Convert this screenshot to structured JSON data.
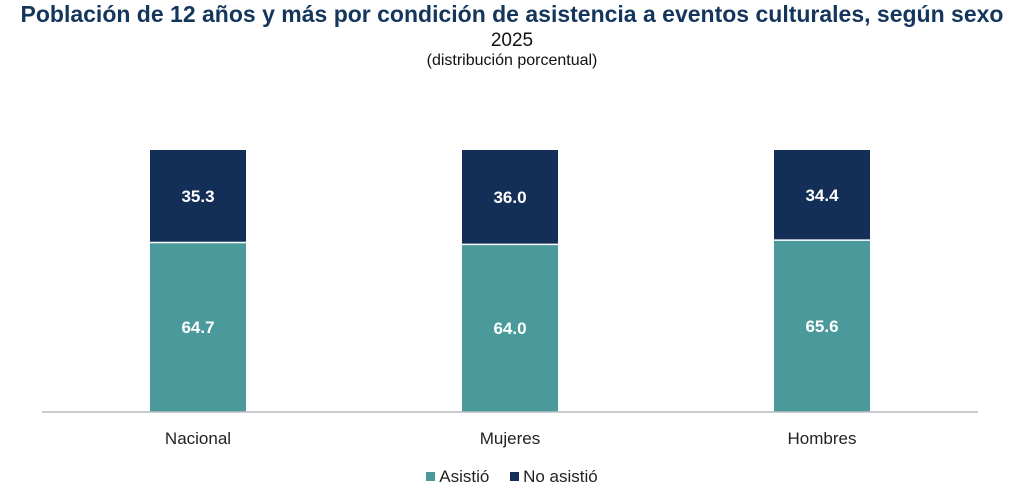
{
  "chart_data": {
    "type": "stacked-bar",
    "title": "Población de 12 años y más por condición de asistencia a eventos culturales, según sexo",
    "subtitle": "2025",
    "note": "(distribución porcentual)",
    "categories": [
      "Nacional",
      "Mujeres",
      "Hombres"
    ],
    "series": [
      {
        "name": "Asistió",
        "color": "#4a9a9c",
        "values": [
          64.7,
          64.0,
          65.6
        ],
        "labels": [
          "64.7",
          "64.0",
          "65.6"
        ]
      },
      {
        "name": "No asistió",
        "color": "#132f57",
        "values": [
          35.3,
          36.0,
          34.4
        ],
        "labels": [
          "35.3",
          "36.0",
          "34.4"
        ]
      }
    ],
    "ylim": [
      0,
      100
    ],
    "grid": false,
    "legend_position": "bottom"
  }
}
